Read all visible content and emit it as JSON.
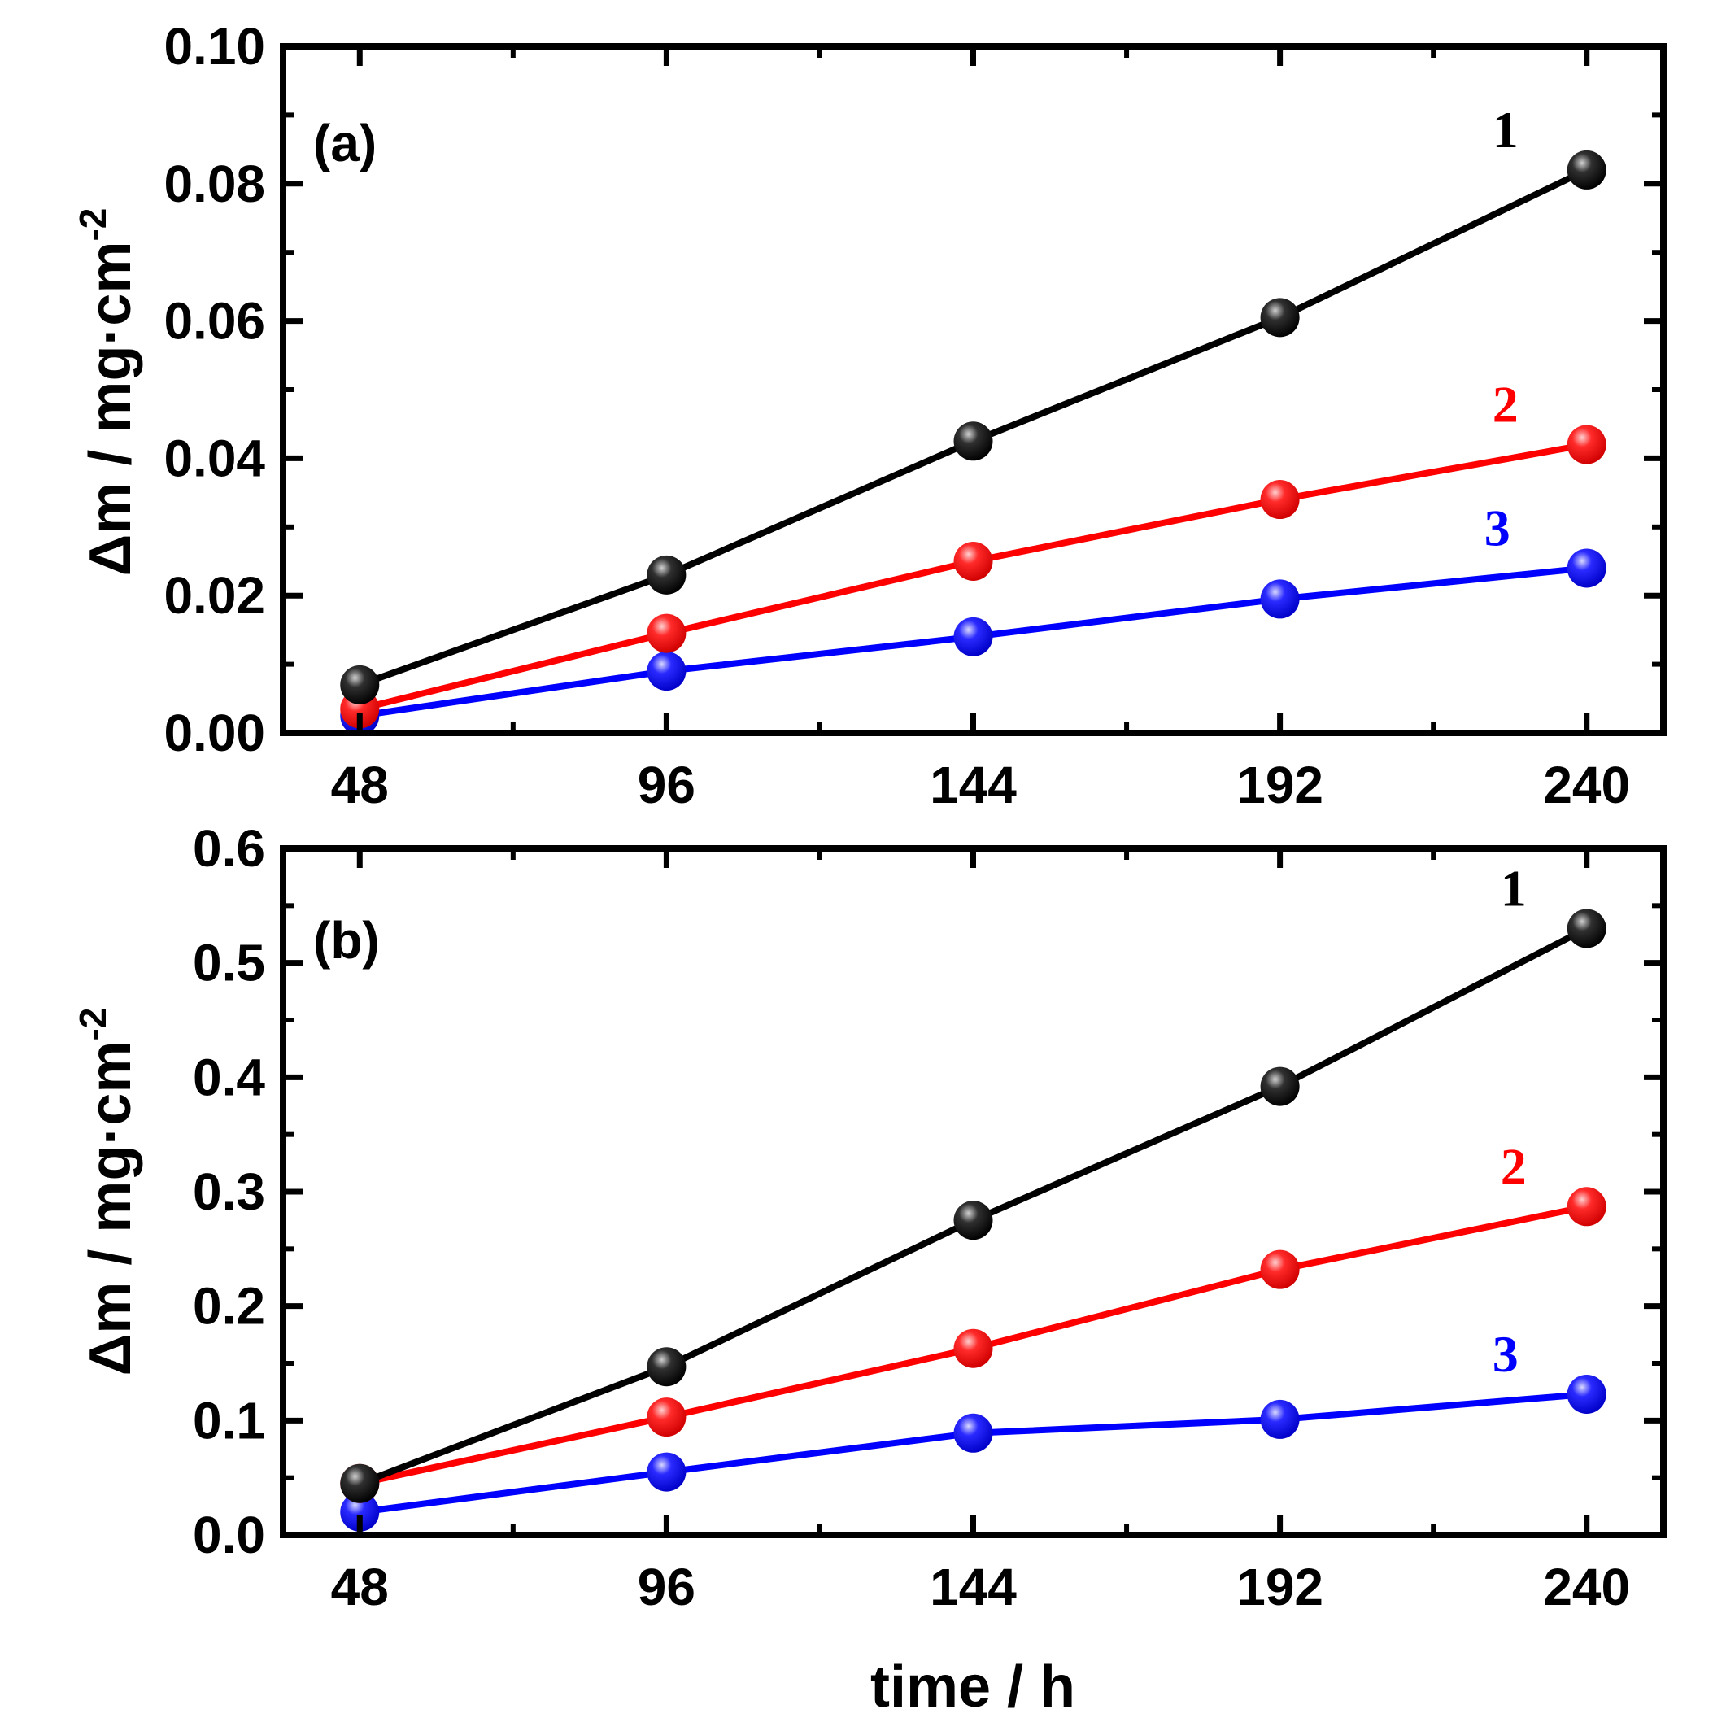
{
  "chart_data": [
    {
      "type": "line",
      "panel_label": "(a)",
      "x": [
        48,
        96,
        144,
        192,
        240
      ],
      "xlim": [
        36,
        252
      ],
      "xticks": [
        "48",
        "96",
        "144",
        "192",
        "240"
      ],
      "xlabel": "time / h",
      "ylabel_main": "Δm / mg·cm",
      "ylabel_sup": "-2",
      "ylim": [
        0,
        0.1
      ],
      "yticks": [
        "0.00",
        "0.02",
        "0.04",
        "0.06",
        "0.08",
        "0.10"
      ],
      "series": [
        {
          "name": "1",
          "color": "#000000",
          "values": [
            0.007,
            0.023,
            0.0425,
            0.0605,
            0.082
          ]
        },
        {
          "name": "2",
          "color": "#ff0000",
          "values": [
            0.0035,
            0.0145,
            0.025,
            0.034,
            0.042
          ]
        },
        {
          "name": "3",
          "color": "#0000ff",
          "values": [
            0.0025,
            0.009,
            0.014,
            0.0195,
            0.024
          ]
        }
      ]
    },
    {
      "type": "line",
      "panel_label": "(b)",
      "x": [
        48,
        96,
        144,
        192,
        240
      ],
      "xlim": [
        36,
        252
      ],
      "xticks": [
        "48",
        "96",
        "144",
        "192",
        "240"
      ],
      "xlabel": "time / h",
      "ylabel_main": "Δm / mg·cm",
      "ylabel_sup": "-2",
      "ylim": [
        0,
        0.6
      ],
      "yticks": [
        "0.0",
        "0.1",
        "0.2",
        "0.3",
        "0.4",
        "0.5",
        "0.6"
      ],
      "series": [
        {
          "name": "1",
          "color": "#000000",
          "values": [
            0.045,
            0.147,
            0.275,
            0.392,
            0.53
          ]
        },
        {
          "name": "2",
          "color": "#ff0000",
          "values": [
            0.045,
            0.103,
            0.163,
            0.232,
            0.287
          ]
        },
        {
          "name": "3",
          "color": "#0000ff",
          "values": [
            0.02,
            0.055,
            0.089,
            0.101,
            0.123
          ]
        }
      ]
    }
  ]
}
